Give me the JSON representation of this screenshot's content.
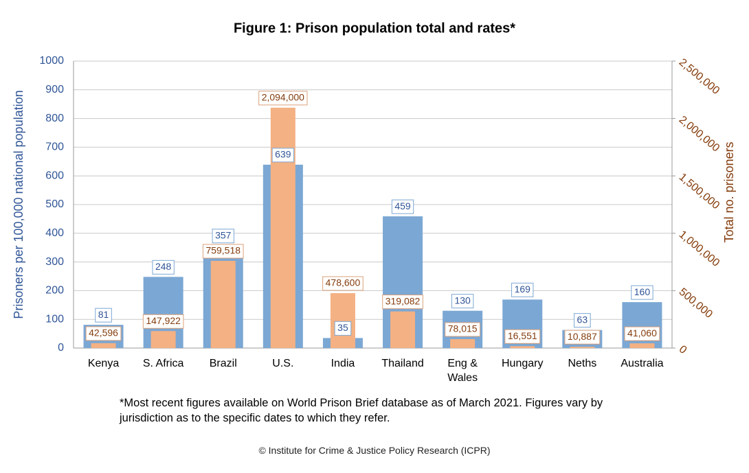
{
  "chart_data": {
    "type": "bar",
    "title": "Figure 1: Prison population total and rates*",
    "ylabel": "Prisoners per 100,000 national population",
    "y2label": "Total no. prisoners",
    "categories": [
      "Kenya",
      "S. Africa",
      "Brazil",
      "U.S.",
      "India",
      "Thailand",
      "Eng & Wales",
      "Hungary",
      "Neths",
      "Australia"
    ],
    "series": [
      {
        "color": "#7ba7d4",
        "values": [
          81,
          248,
          357,
          639,
          35,
          459,
          130,
          169,
          63,
          160
        ]
      },
      {
        "color": "#f4b183",
        "axis": "y2",
        "values": [
          42596,
          147922,
          759518,
          2094000,
          478600,
          319082,
          78015,
          16551,
          10887,
          41060
        ],
        "value_labels": [
          "42,596",
          "147,922",
          "759,518",
          "2,094,000",
          "478,600",
          "319,082",
          "78,015",
          "16,551",
          "10,887",
          "41,060"
        ]
      }
    ],
    "ylim": [
      0,
      1000
    ],
    "yticks": [
      0,
      100,
      200,
      300,
      400,
      500,
      600,
      700,
      800,
      900,
      1000
    ],
    "y2lim": [
      0,
      2500000
    ],
    "y2ticks": [
      0,
      {
        "value": 500000,
        "label": "500,000"
      },
      {
        "value": 1000000,
        "label": "1,000,000"
      },
      {
        "value": 1500000,
        "label": "1,500,000"
      },
      {
        "value": 2000000,
        "label": "2,000,000"
      },
      {
        "value": 2500000,
        "label": "2,500,000"
      }
    ],
    "grid": true,
    "footnote": "*Most recent figures available on World Prison Brief database as of March 2021. Figures vary by jurisdiction as to the specific dates to which they refer.",
    "source": "© Institute for Crime & Justice Policy Research (ICPR)"
  }
}
